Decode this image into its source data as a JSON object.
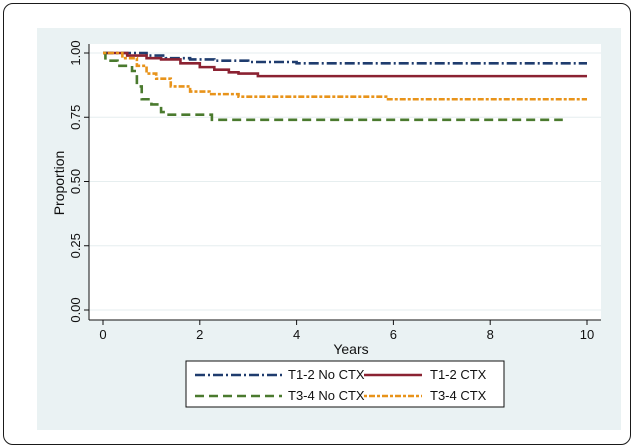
{
  "chart_data": {
    "type": "line",
    "xlabel": "Years",
    "ylabel": "Proportion",
    "xlim": [
      0,
      10
    ],
    "ylim": [
      0,
      1
    ],
    "xticks": [
      "0",
      "2",
      "4",
      "6",
      "8",
      "10"
    ],
    "yticks": [
      "0.00",
      "0.25",
      "0.50",
      "0.75",
      "1.00"
    ],
    "grid": true,
    "legend_position": "bottom",
    "series": [
      {
        "name": "T1-2 No CTX",
        "color": "#1f3c6e",
        "dash": "dash-dot",
        "points": [
          [
            0,
            1.0
          ],
          [
            0.6,
            1.0
          ],
          [
            0.9,
            0.99
          ],
          [
            1.3,
            0.98
          ],
          [
            1.8,
            0.975
          ],
          [
            2.3,
            0.97
          ],
          [
            3.0,
            0.965
          ],
          [
            4.0,
            0.96
          ],
          [
            10.0,
            0.96
          ]
        ]
      },
      {
        "name": "T1-2 CTX",
        "color": "#8b2232",
        "dash": "solid",
        "points": [
          [
            0,
            1.0
          ],
          [
            0.5,
            0.99
          ],
          [
            0.9,
            0.98
          ],
          [
            1.2,
            0.975
          ],
          [
            1.6,
            0.96
          ],
          [
            2.0,
            0.945
          ],
          [
            2.3,
            0.935
          ],
          [
            2.6,
            0.925
          ],
          [
            2.8,
            0.92
          ],
          [
            3.2,
            0.91
          ],
          [
            10.0,
            0.91
          ]
        ]
      },
      {
        "name": "T3-4 No CTX",
        "color": "#4a7a2e",
        "dash": "dash",
        "points": [
          [
            0,
            1.0
          ],
          [
            0.05,
            0.97
          ],
          [
            0.3,
            0.95
          ],
          [
            0.6,
            0.93
          ],
          [
            0.7,
            0.87
          ],
          [
            0.8,
            0.82
          ],
          [
            1.0,
            0.8
          ],
          [
            1.2,
            0.77
          ],
          [
            1.3,
            0.76
          ],
          [
            2.2,
            0.76
          ],
          [
            2.25,
            0.74
          ],
          [
            9.5,
            0.74
          ]
        ]
      },
      {
        "name": "T3-4 CTX",
        "color": "#e8931a",
        "dash": "dot-dash",
        "points": [
          [
            0,
            1.0
          ],
          [
            0.4,
            0.98
          ],
          [
            0.7,
            0.95
          ],
          [
            0.9,
            0.92
          ],
          [
            1.1,
            0.9
          ],
          [
            1.4,
            0.87
          ],
          [
            1.8,
            0.85
          ],
          [
            2.2,
            0.84
          ],
          [
            2.8,
            0.83
          ],
          [
            5.8,
            0.83
          ],
          [
            5.85,
            0.82
          ],
          [
            10.0,
            0.82
          ]
        ]
      }
    ]
  }
}
